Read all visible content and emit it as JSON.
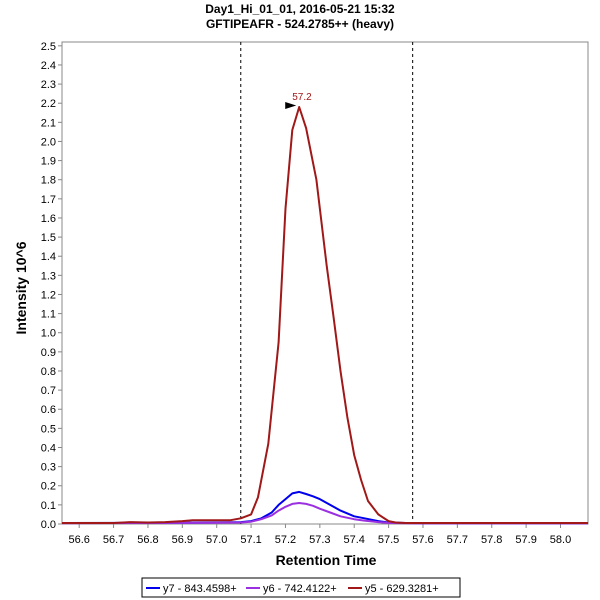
{
  "chart_data": {
    "type": "line",
    "title": "Day1_Hi_01_01, 2016-05-21 15:32",
    "subtitle": "GFTIPEAFR - 524.2785++ (heavy)",
    "xlabel": "Retention Time",
    "ylabel": "Intensity 10^6",
    "xlim": [
      56.55,
      58.08
    ],
    "ylim": [
      0,
      2.52
    ],
    "x_ticks": [
      "56.6",
      "56.7",
      "56.8",
      "56.9",
      "57.0",
      "57.1",
      "57.2",
      "57.3",
      "57.4",
      "57.5",
      "57.6",
      "57.7",
      "57.8",
      "57.9",
      "58.0"
    ],
    "y_ticks": [
      "0.0",
      "0.1",
      "0.2",
      "0.3",
      "0.4",
      "0.5",
      "0.6",
      "0.7",
      "0.8",
      "0.9",
      "1.0",
      "1.1",
      "1.2",
      "1.3",
      "1.4",
      "1.5",
      "1.6",
      "1.7",
      "1.8",
      "1.9",
      "2.0",
      "2.1",
      "2.2",
      "2.3",
      "2.4",
      "2.5"
    ],
    "integration_bounds": [
      57.07,
      57.57
    ],
    "peak_annotation": {
      "label": "57.2",
      "x": 57.24,
      "y": 2.18
    },
    "legend_position": "bottom",
    "grid": false,
    "series": [
      {
        "name": "y7 - 843.4598+",
        "color": "#0000ee",
        "x": [
          56.55,
          56.8,
          56.9,
          57.0,
          57.07,
          57.1,
          57.13,
          57.16,
          57.18,
          57.2,
          57.22,
          57.24,
          57.26,
          57.28,
          57.3,
          57.33,
          57.36,
          57.4,
          57.43,
          57.47,
          57.5,
          57.55,
          57.6,
          58.08
        ],
        "y": [
          0.005,
          0.006,
          0.007,
          0.008,
          0.01,
          0.015,
          0.03,
          0.06,
          0.1,
          0.13,
          0.16,
          0.168,
          0.157,
          0.145,
          0.13,
          0.1,
          0.07,
          0.04,
          0.03,
          0.015,
          0.008,
          0.005,
          0.004,
          0.004
        ]
      },
      {
        "name": "y6 - 742.4122+",
        "color": "#9b30e0",
        "x": [
          56.55,
          56.8,
          56.9,
          57.0,
          57.07,
          57.1,
          57.13,
          57.16,
          57.18,
          57.2,
          57.22,
          57.24,
          57.26,
          57.28,
          57.3,
          57.33,
          57.36,
          57.4,
          57.43,
          57.47,
          57.5,
          57.55,
          57.6,
          58.08
        ],
        "y": [
          0.004,
          0.005,
          0.006,
          0.007,
          0.008,
          0.012,
          0.025,
          0.045,
          0.07,
          0.09,
          0.105,
          0.11,
          0.105,
          0.095,
          0.08,
          0.06,
          0.04,
          0.025,
          0.018,
          0.01,
          0.006,
          0.004,
          0.003,
          0.003
        ]
      },
      {
        "name": "y5 - 629.3281+",
        "color": "#a01818",
        "x": [
          56.55,
          56.7,
          56.75,
          56.8,
          56.85,
          56.9,
          56.93,
          57.0,
          57.04,
          57.07,
          57.1,
          57.12,
          57.15,
          57.18,
          57.2,
          57.22,
          57.24,
          57.26,
          57.29,
          57.32,
          57.34,
          57.36,
          57.38,
          57.4,
          57.42,
          57.44,
          57.47,
          57.5,
          57.52,
          57.55,
          57.6,
          58.08
        ],
        "y": [
          0.005,
          0.005,
          0.01,
          0.008,
          0.01,
          0.015,
          0.02,
          0.02,
          0.02,
          0.03,
          0.05,
          0.14,
          0.42,
          0.95,
          1.65,
          2.06,
          2.18,
          2.07,
          1.8,
          1.35,
          1.08,
          0.8,
          0.56,
          0.36,
          0.23,
          0.12,
          0.05,
          0.015,
          0.008,
          0.005,
          0.005,
          0.005
        ]
      }
    ]
  }
}
